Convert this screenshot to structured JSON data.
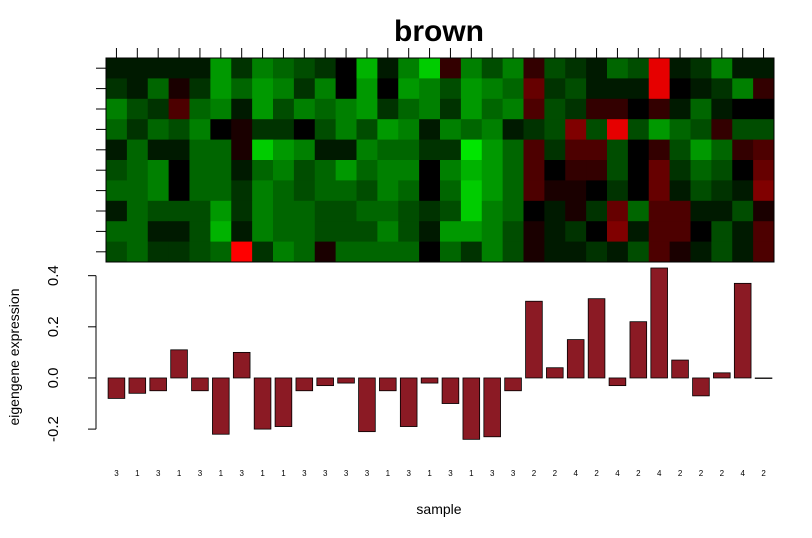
{
  "chart_data": [
    {
      "type": "heatmap",
      "title": "brown",
      "n_rows": 10,
      "n_cols": 32,
      "color_scale": {
        "low": "#00ff00",
        "mid": "#000000",
        "high": "#ff0000",
        "range": [
          -1,
          1
        ]
      },
      "values": [
        [
          -0.1,
          -0.1,
          -0.1,
          -0.1,
          -0.1,
          -0.6,
          -0.2,
          -0.5,
          -0.4,
          -0.3,
          -0.2,
          0.0,
          -0.7,
          -0.1,
          -0.5,
          -0.8,
          0.2,
          -0.5,
          -0.3,
          -0.5,
          0.2,
          -0.3,
          -0.2,
          -0.1,
          -0.4,
          -0.3,
          0.9,
          -0.1,
          -0.2,
          -0.5,
          -0.1,
          -0.1
        ],
        [
          -0.2,
          -0.1,
          -0.4,
          0.1,
          -0.2,
          -0.6,
          -0.4,
          -0.6,
          -0.5,
          -0.2,
          -0.5,
          0.0,
          -0.6,
          0.0,
          -0.6,
          -0.5,
          -0.3,
          -0.6,
          -0.5,
          -0.4,
          0.4,
          -0.2,
          -0.3,
          -0.1,
          -0.1,
          -0.1,
          0.9,
          0.0,
          -0.1,
          -0.2,
          -0.5,
          0.2
        ],
        [
          -0.5,
          -0.3,
          -0.2,
          0.3,
          -0.4,
          -0.5,
          -0.1,
          -0.6,
          -0.3,
          -0.5,
          -0.4,
          -0.5,
          -0.6,
          -0.2,
          -0.4,
          -0.5,
          -0.2,
          -0.6,
          -0.4,
          -0.5,
          0.3,
          -0.3,
          -0.2,
          0.2,
          0.2,
          0.0,
          0.2,
          -0.1,
          -0.4,
          -0.1,
          0.0,
          0.0
        ],
        [
          -0.4,
          -0.2,
          -0.4,
          -0.3,
          -0.5,
          0.0,
          0.1,
          -0.2,
          -0.2,
          0.0,
          -0.3,
          -0.5,
          -0.3,
          -0.6,
          -0.5,
          -0.1,
          -0.5,
          -0.4,
          -0.5,
          -0.1,
          -0.2,
          -0.3,
          0.5,
          -0.3,
          0.9,
          -0.3,
          -0.6,
          -0.4,
          -0.3,
          0.2,
          -0.3,
          -0.3
        ],
        [
          -0.1,
          -0.4,
          -0.1,
          -0.1,
          -0.4,
          -0.4,
          0.1,
          -0.8,
          -0.6,
          -0.5,
          -0.1,
          -0.1,
          -0.5,
          -0.4,
          -0.4,
          -0.2,
          -0.2,
          -0.9,
          -0.6,
          -0.4,
          0.3,
          -0.2,
          0.3,
          0.3,
          -0.3,
          0.0,
          0.2,
          -0.3,
          -0.6,
          -0.4,
          0.2,
          0.3
        ],
        [
          -0.3,
          -0.4,
          -0.5,
          0.0,
          -0.4,
          -0.4,
          -0.1,
          -0.4,
          -0.5,
          -0.3,
          -0.4,
          -0.6,
          -0.4,
          -0.5,
          -0.5,
          0.0,
          -0.5,
          -0.7,
          -0.6,
          -0.4,
          0.3,
          0.0,
          0.2,
          0.2,
          -0.3,
          0.0,
          0.4,
          -0.2,
          -0.4,
          -0.3,
          0.0,
          0.4
        ],
        [
          -0.4,
          -0.4,
          -0.5,
          0.0,
          -0.4,
          -0.4,
          -0.2,
          -0.5,
          -0.4,
          -0.3,
          -0.4,
          -0.4,
          -0.3,
          -0.5,
          -0.4,
          0.0,
          -0.4,
          -0.8,
          -0.6,
          -0.4,
          0.3,
          0.1,
          0.1,
          0.0,
          -0.2,
          0.0,
          0.4,
          -0.1,
          -0.3,
          -0.2,
          -0.1,
          0.5
        ],
        [
          -0.1,
          -0.4,
          -0.3,
          -0.3,
          -0.3,
          -0.6,
          -0.2,
          -0.5,
          -0.4,
          -0.4,
          -0.3,
          -0.3,
          -0.4,
          -0.4,
          -0.3,
          -0.2,
          -0.3,
          -0.8,
          -0.5,
          -0.4,
          0.0,
          -0.1,
          0.1,
          -0.2,
          0.4,
          -0.4,
          0.3,
          0.3,
          -0.1,
          -0.1,
          -0.3,
          0.1
        ],
        [
          -0.4,
          -0.4,
          -0.1,
          -0.1,
          -0.3,
          -0.7,
          -0.1,
          -0.5,
          -0.4,
          -0.4,
          -0.3,
          -0.3,
          -0.3,
          -0.5,
          -0.3,
          -0.1,
          -0.6,
          -0.6,
          -0.5,
          -0.3,
          0.1,
          -0.1,
          -0.2,
          0.0,
          0.5,
          -0.1,
          0.3,
          0.3,
          0.0,
          -0.3,
          -0.1,
          0.3
        ],
        [
          -0.3,
          -0.4,
          -0.2,
          -0.2,
          -0.3,
          -0.4,
          1.0,
          -0.2,
          -0.5,
          -0.4,
          0.1,
          -0.4,
          -0.4,
          -0.4,
          -0.4,
          0.0,
          -0.4,
          -0.2,
          -0.5,
          -0.3,
          0.1,
          -0.1,
          -0.1,
          -0.2,
          -0.1,
          -0.3,
          0.3,
          0.1,
          -0.1,
          -0.3,
          -0.1,
          0.3
        ]
      ]
    },
    {
      "type": "bar",
      "ylabel": "eigengene expression",
      "xlabel": "sample",
      "ylim": [
        -0.27,
        0.43
      ],
      "yticks": [
        -0.2,
        0.0,
        0.2,
        0.4
      ],
      "ytick_labels": [
        "-0.2",
        "0.0",
        "0.2",
        "0.4"
      ],
      "bar_color": "#8b1a24",
      "categories": [
        "3",
        "1",
        "3",
        "1",
        "3",
        "1",
        "3",
        "1",
        "1",
        "3",
        "3",
        "3",
        "3",
        "1",
        "3",
        "1",
        "3",
        "1",
        "3",
        "3",
        "2",
        "2",
        "4",
        "2",
        "4",
        "2",
        "4",
        "2",
        "2",
        "2",
        "4",
        "2"
      ],
      "values": [
        -0.08,
        -0.06,
        -0.05,
        0.11,
        -0.05,
        -0.22,
        0.1,
        -0.2,
        -0.19,
        -0.05,
        -0.03,
        -0.02,
        -0.21,
        -0.05,
        -0.19,
        -0.02,
        -0.1,
        -0.24,
        -0.23,
        -0.05,
        0.3,
        0.04,
        0.15,
        0.31,
        -0.03,
        0.22,
        0.43,
        0.07,
        -0.07,
        0.02,
        0.37,
        0.0
      ]
    }
  ]
}
